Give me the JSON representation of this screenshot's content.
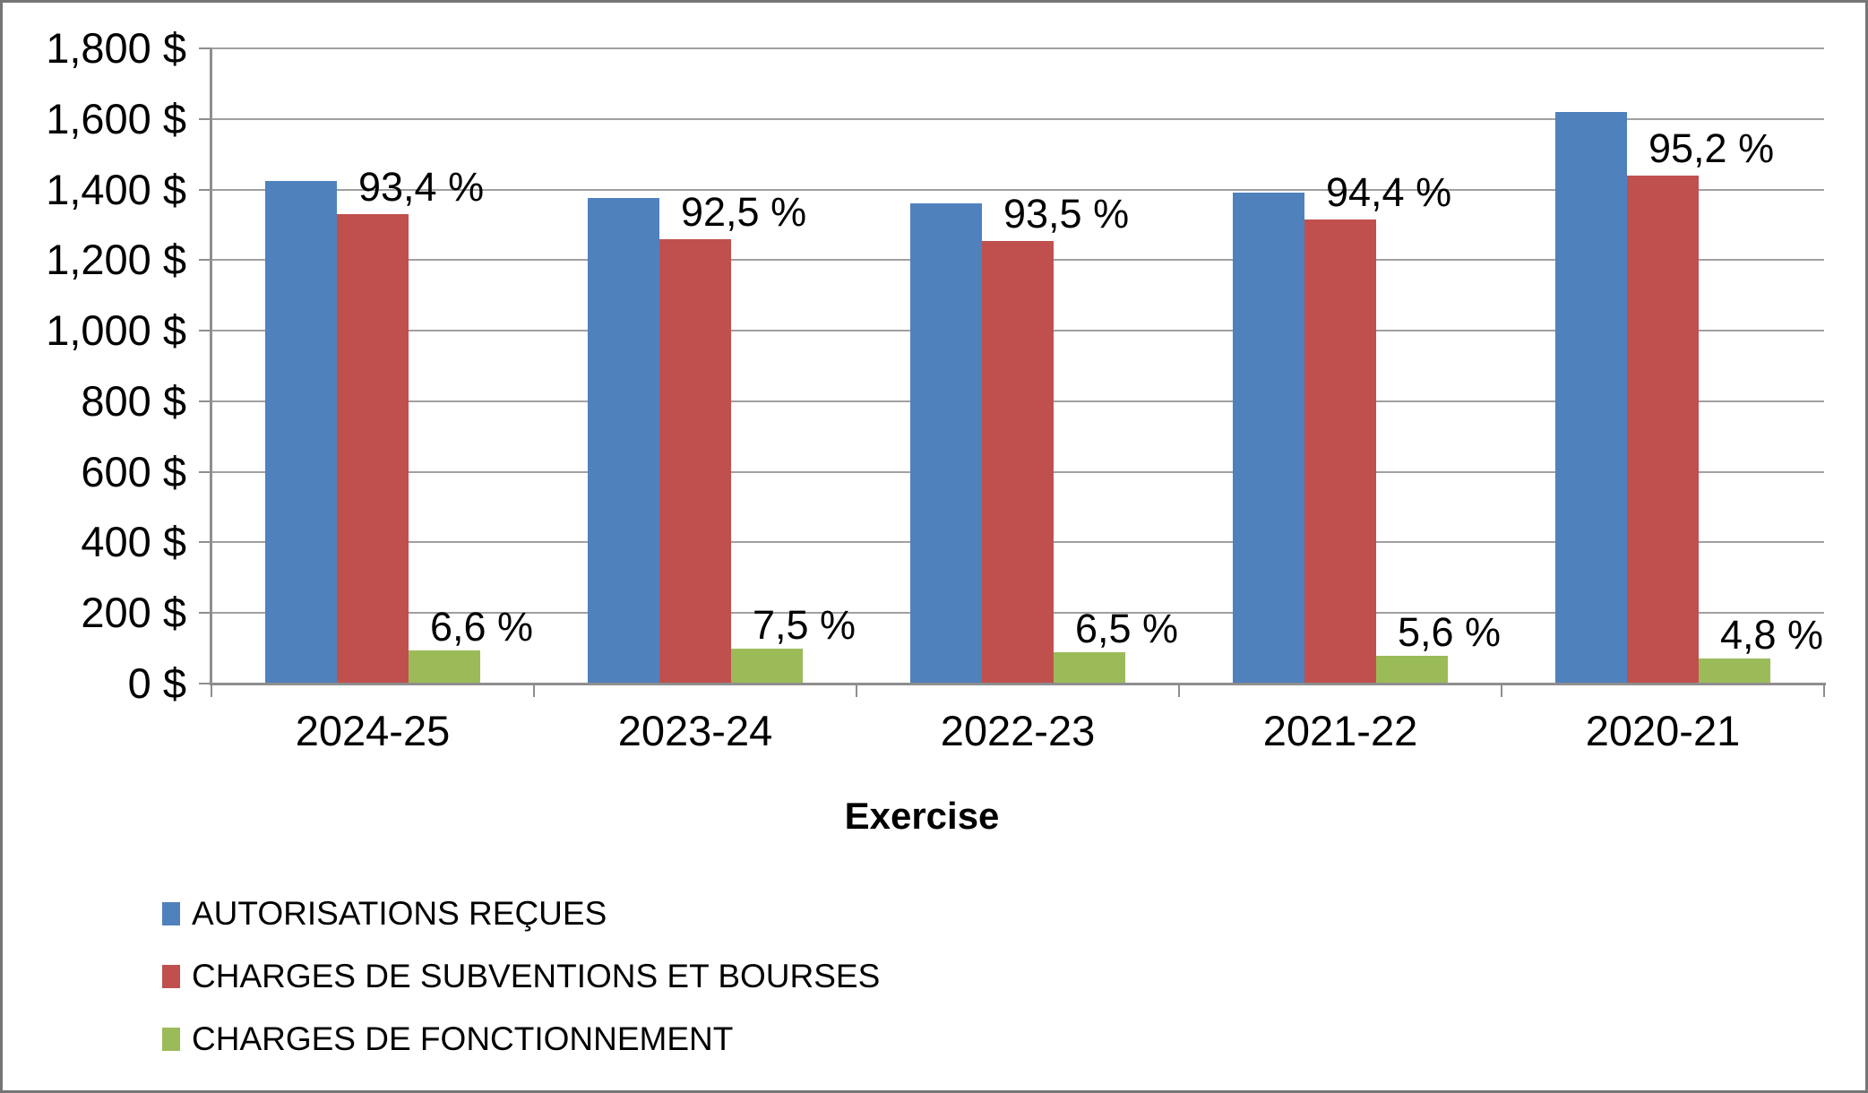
{
  "chart_data": {
    "type": "bar",
    "title": "",
    "categories": [
      "2024-25",
      "2023-24",
      "2022-23",
      "2021-22",
      "2020-21"
    ],
    "series": [
      {
        "name": "AUTORISATIONS REÇUES",
        "color": "#4F81BD",
        "values": [
          1425,
          1375,
          1360,
          1390,
          1620
        ],
        "labels": [
          "",
          "",
          "",
          "",
          ""
        ]
      },
      {
        "name": "CHARGES DE SUBVENTIONS ET BOURSES",
        "color": "#C0504D",
        "values": [
          1330,
          1260,
          1255,
          1315,
          1440
        ],
        "labels": [
          "93,4 %",
          "92,5 %",
          "93,5 %",
          "94,4 %",
          "95,2 %"
        ]
      },
      {
        "name": "CHARGES DE FONCTIONNEMENT",
        "color": "#9BBB59",
        "values": [
          95,
          100,
          88,
          78,
          72
        ],
        "labels": [
          "6,6 %",
          "7,5 %",
          "6,5 %",
          "5,6 %",
          "4,8 %"
        ]
      }
    ],
    "xlabel": "Exercise",
    "ylabel": "",
    "ylim": [
      0,
      1800
    ],
    "ytick_step": 200,
    "ytick_labels": [
      "0 $",
      "200 $",
      "400 $",
      "600 $",
      "800 $",
      "1,000 $",
      "1,200 $",
      "1,400 $",
      "1,600 $",
      "1,800 $"
    ],
    "grid": true,
    "legend_position": "bottom-left",
    "currency_suffix": "$",
    "percent_suffix": "%"
  },
  "colors": {
    "grid": "#a0a0a0",
    "axis": "#8e8e8e",
    "text": "#000000",
    "background": "#ffffff",
    "frame_border": "#757575"
  }
}
